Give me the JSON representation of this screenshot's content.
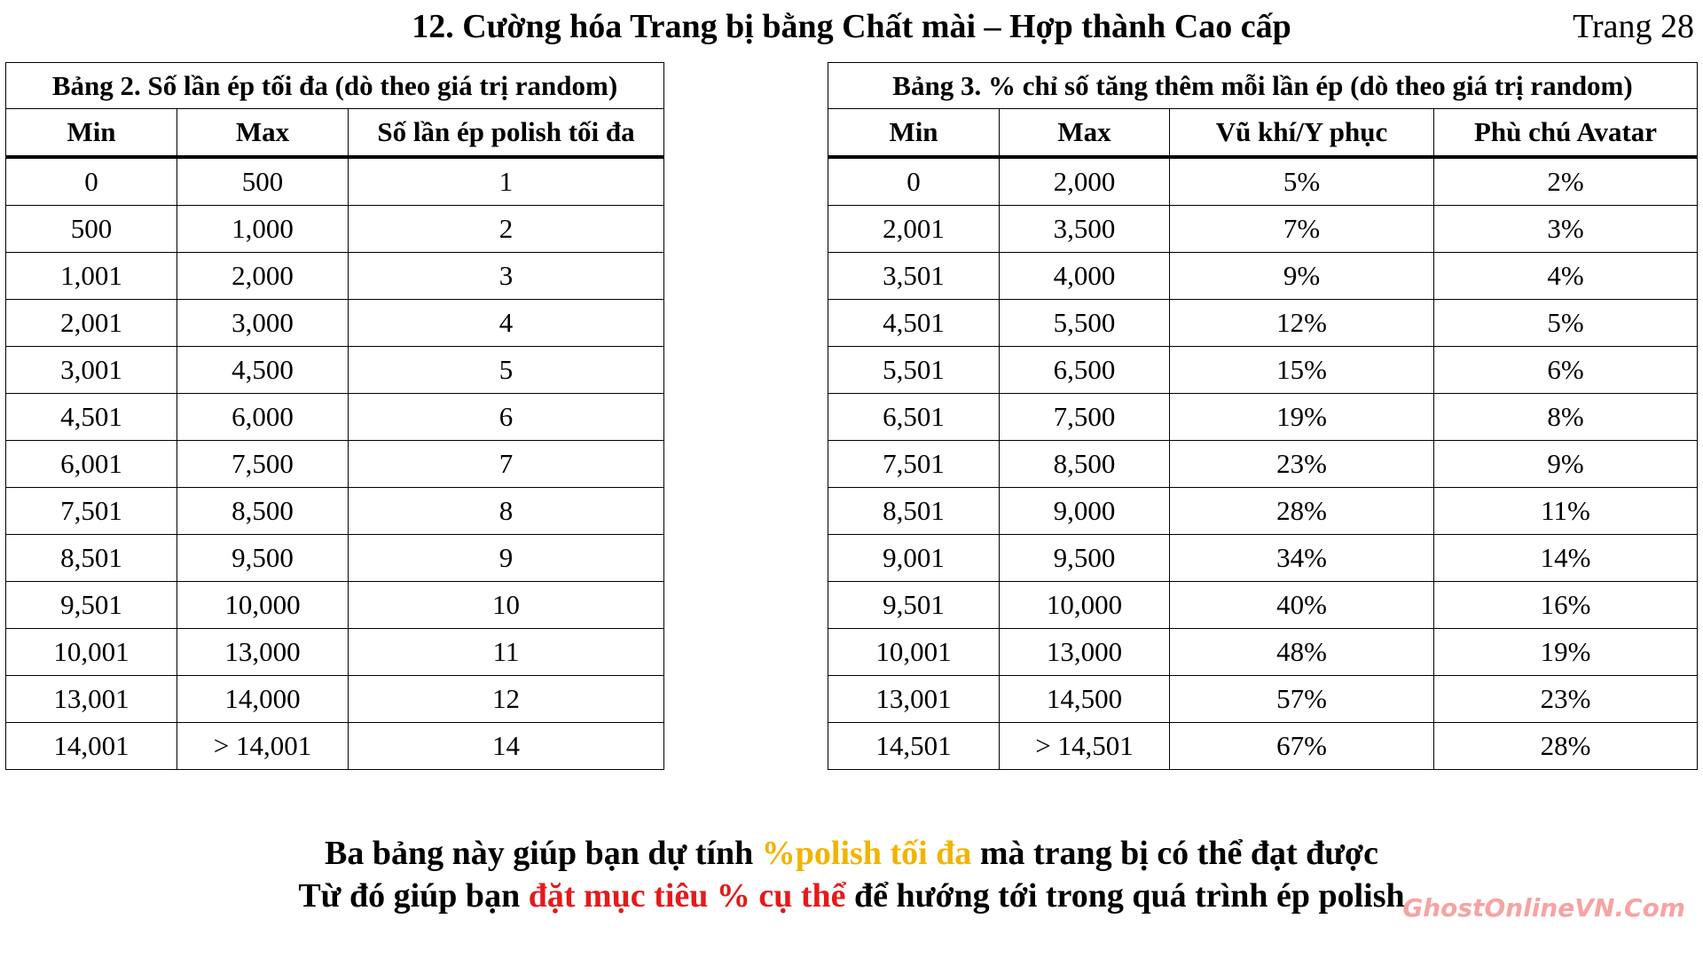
{
  "header": {
    "title": "12. Cường hóa Trang bị bằng Chất mài – Hợp thành Cao cấp",
    "page": "Trang 28"
  },
  "table2": {
    "title": "Bảng 2. Số lần ép tối đa (dò theo giá trị random)",
    "columns": [
      "Min",
      "Max",
      "Số lần ép polish tối đa"
    ],
    "rows": [
      [
        "0",
        "500",
        "1"
      ],
      [
        "500",
        "1,000",
        "2"
      ],
      [
        "1,001",
        "2,000",
        "3"
      ],
      [
        "2,001",
        "3,000",
        "4"
      ],
      [
        "3,001",
        "4,500",
        "5"
      ],
      [
        "4,501",
        "6,000",
        "6"
      ],
      [
        "6,001",
        "7,500",
        "7"
      ],
      [
        "7,501",
        "8,500",
        "8"
      ],
      [
        "8,501",
        "9,500",
        "9"
      ],
      [
        "9,501",
        "10,000",
        "10"
      ],
      [
        "10,001",
        "13,000",
        "11"
      ],
      [
        "13,001",
        "14,000",
        "12"
      ],
      [
        "14,001",
        "> 14,001",
        "14"
      ]
    ]
  },
  "table3": {
    "title": "Bảng 3. % chỉ số tăng thêm mỗi lần ép (dò theo giá trị random)",
    "columns": [
      "Min",
      "Max",
      "Vũ khí/Y phục",
      "Phù chú Avatar"
    ],
    "rows": [
      [
        "0",
        "2,000",
        "5%",
        "2%"
      ],
      [
        "2,001",
        "3,500",
        "7%",
        "3%"
      ],
      [
        "3,501",
        "4,000",
        "9%",
        "4%"
      ],
      [
        "4,501",
        "5,500",
        "12%",
        "5%"
      ],
      [
        "5,501",
        "6,500",
        "15%",
        "6%"
      ],
      [
        "6,501",
        "7,500",
        "19%",
        "8%"
      ],
      [
        "7,501",
        "8,500",
        "23%",
        "9%"
      ],
      [
        "8,501",
        "9,000",
        "28%",
        "11%"
      ],
      [
        "9,001",
        "9,500",
        "34%",
        "14%"
      ],
      [
        "9,501",
        "10,000",
        "40%",
        "16%"
      ],
      [
        "10,001",
        "13,000",
        "48%",
        "19%"
      ],
      [
        "13,001",
        "14,500",
        "57%",
        "23%"
      ],
      [
        "14,501",
        "> 14,501",
        "67%",
        "28%"
      ]
    ]
  },
  "footer": {
    "line1": [
      "Ba bảng này giúp bạn dự tính ",
      "%polish tối đa",
      " mà trang bị có thể đạt được"
    ],
    "line2": [
      "Từ đó giúp bạn ",
      "đặt mục tiêu % cụ thể",
      " để hướng tới trong quá trình ép polish"
    ]
  },
  "watermark": "GhostOnlineVN.Com"
}
